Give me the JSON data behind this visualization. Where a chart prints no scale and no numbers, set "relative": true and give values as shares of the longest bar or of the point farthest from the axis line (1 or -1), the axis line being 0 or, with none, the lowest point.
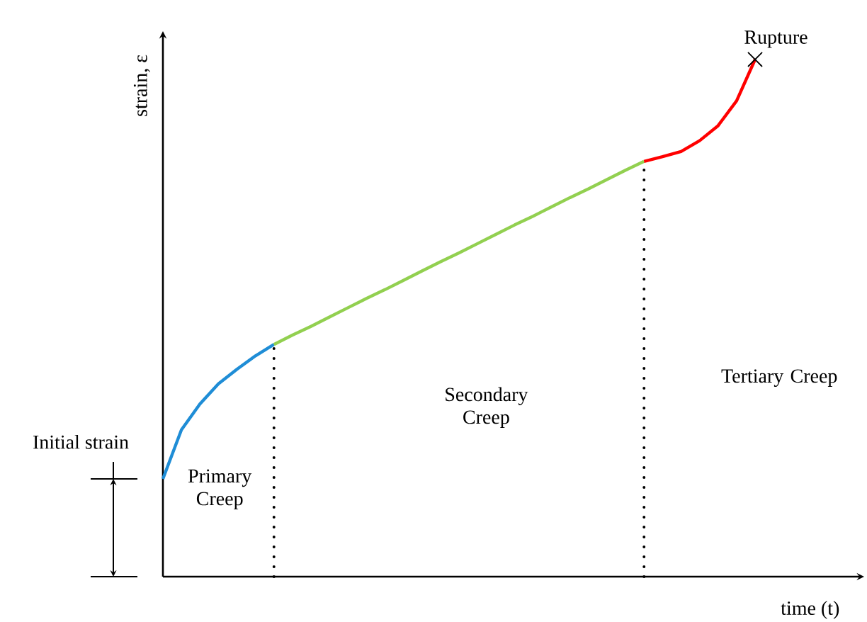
{
  "chart_data": {
    "type": "line",
    "relative": true,
    "xlabel": "time (t)",
    "ylabel": "strain, ε",
    "tick_labels": false,
    "categories": [
      null,
      null,
      null,
      null,
      null,
      null,
      null,
      null,
      null,
      null,
      null,
      null,
      null,
      null,
      null,
      null,
      null,
      null,
      null,
      null,
      null,
      null,
      null,
      null,
      null,
      null,
      null,
      null,
      null,
      null,
      null,
      null,
      null
    ],
    "series": [
      {
        "color": "#1f8dd6",
        "values": [
          0.189,
          0.284,
          0.334,
          0.373,
          0.401,
          0.427,
          0.449,
          null,
          null,
          null,
          null,
          null,
          null,
          null,
          null,
          null,
          null,
          null,
          null,
          null,
          null,
          null,
          null,
          null,
          null,
          null,
          null,
          null,
          null,
          null,
          null,
          null,
          null
        ]
      },
      {
        "color": "#92d050",
        "values": [
          null,
          null,
          null,
          null,
          null,
          null,
          0.449,
          0.467,
          0.484,
          0.502,
          0.52,
          0.538,
          0.555,
          0.573,
          0.591,
          0.609,
          0.626,
          0.644,
          0.662,
          0.68,
          0.697,
          0.715,
          0.733,
          0.75,
          0.768,
          0.786,
          0.803,
          null,
          null,
          null,
          null,
          null,
          null
        ]
      },
      {
        "color": "#ff0000",
        "values": [
          null,
          null,
          null,
          null,
          null,
          null,
          null,
          null,
          null,
          null,
          null,
          null,
          null,
          null,
          null,
          null,
          null,
          null,
          null,
          null,
          null,
          null,
          null,
          null,
          null,
          null,
          0.803,
          0.812,
          0.822,
          0.843,
          0.872,
          0.92,
          1
        ]
      }
    ],
    "annotations": [
      "Initial strain",
      "Primary Creep",
      "Secondary Creep",
      "Tertiary Creep",
      "Rupture"
    ]
  }
}
